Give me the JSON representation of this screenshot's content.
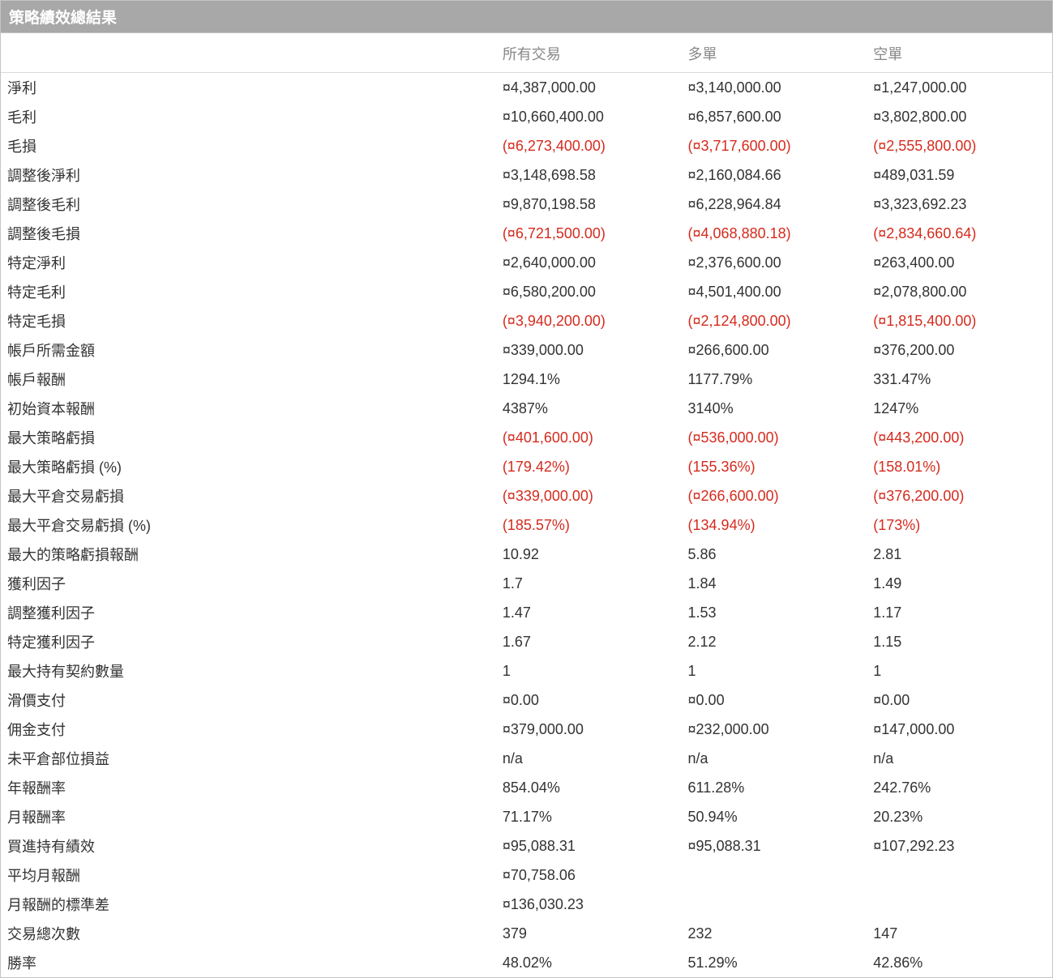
{
  "title": "策略績效總結果",
  "columns": [
    "",
    "所有交易",
    "多單",
    "空單"
  ],
  "rows": [
    {
      "label": "淨利",
      "vals": [
        {
          "t": "¤4,387,000.00",
          "neg": false
        },
        {
          "t": "¤3,140,000.00",
          "neg": false
        },
        {
          "t": "¤1,247,000.00",
          "neg": false
        }
      ]
    },
    {
      "label": "毛利",
      "vals": [
        {
          "t": "¤10,660,400.00",
          "neg": false
        },
        {
          "t": "¤6,857,600.00",
          "neg": false
        },
        {
          "t": "¤3,802,800.00",
          "neg": false
        }
      ]
    },
    {
      "label": "毛損",
      "vals": [
        {
          "t": "(¤6,273,400.00)",
          "neg": true
        },
        {
          "t": "(¤3,717,600.00)",
          "neg": true
        },
        {
          "t": "(¤2,555,800.00)",
          "neg": true
        }
      ]
    },
    {
      "label": "調整後淨利",
      "vals": [
        {
          "t": "¤3,148,698.58",
          "neg": false
        },
        {
          "t": "¤2,160,084.66",
          "neg": false
        },
        {
          "t": "¤489,031.59",
          "neg": false
        }
      ]
    },
    {
      "label": "調整後毛利",
      "vals": [
        {
          "t": "¤9,870,198.58",
          "neg": false
        },
        {
          "t": "¤6,228,964.84",
          "neg": false
        },
        {
          "t": "¤3,323,692.23",
          "neg": false
        }
      ]
    },
    {
      "label": "調整後毛損",
      "vals": [
        {
          "t": "(¤6,721,500.00)",
          "neg": true
        },
        {
          "t": "(¤4,068,880.18)",
          "neg": true
        },
        {
          "t": "(¤2,834,660.64)",
          "neg": true
        }
      ]
    },
    {
      "label": "特定淨利",
      "vals": [
        {
          "t": "¤2,640,000.00",
          "neg": false
        },
        {
          "t": "¤2,376,600.00",
          "neg": false
        },
        {
          "t": "¤263,400.00",
          "neg": false
        }
      ]
    },
    {
      "label": "特定毛利",
      "vals": [
        {
          "t": "¤6,580,200.00",
          "neg": false
        },
        {
          "t": "¤4,501,400.00",
          "neg": false
        },
        {
          "t": "¤2,078,800.00",
          "neg": false
        }
      ]
    },
    {
      "label": "特定毛損",
      "vals": [
        {
          "t": "(¤3,940,200.00)",
          "neg": true
        },
        {
          "t": "(¤2,124,800.00)",
          "neg": true
        },
        {
          "t": "(¤1,815,400.00)",
          "neg": true
        }
      ]
    },
    {
      "label": "帳戶所需金額",
      "vals": [
        {
          "t": "¤339,000.00",
          "neg": false
        },
        {
          "t": "¤266,600.00",
          "neg": false
        },
        {
          "t": "¤376,200.00",
          "neg": false
        }
      ]
    },
    {
      "label": "帳戶報酬",
      "vals": [
        {
          "t": "1294.1%",
          "neg": false
        },
        {
          "t": "1177.79%",
          "neg": false
        },
        {
          "t": "331.47%",
          "neg": false
        }
      ]
    },
    {
      "label": "初始資本報酬",
      "vals": [
        {
          "t": "4387%",
          "neg": false
        },
        {
          "t": "3140%",
          "neg": false
        },
        {
          "t": "1247%",
          "neg": false
        }
      ]
    },
    {
      "label": "最大策略虧損",
      "vals": [
        {
          "t": "(¤401,600.00)",
          "neg": true
        },
        {
          "t": "(¤536,000.00)",
          "neg": true
        },
        {
          "t": "(¤443,200.00)",
          "neg": true
        }
      ]
    },
    {
      "label": "最大策略虧損 (%)",
      "vals": [
        {
          "t": "(179.42%)",
          "neg": true
        },
        {
          "t": "(155.36%)",
          "neg": true
        },
        {
          "t": "(158.01%)",
          "neg": true
        }
      ]
    },
    {
      "label": "最大平倉交易虧損",
      "vals": [
        {
          "t": "(¤339,000.00)",
          "neg": true
        },
        {
          "t": "(¤266,600.00)",
          "neg": true
        },
        {
          "t": "(¤376,200.00)",
          "neg": true
        }
      ]
    },
    {
      "label": "最大平倉交易虧損 (%)",
      "vals": [
        {
          "t": "(185.57%)",
          "neg": true
        },
        {
          "t": "(134.94%)",
          "neg": true
        },
        {
          "t": "(173%)",
          "neg": true
        }
      ]
    },
    {
      "label": "最大的策略虧損報酬",
      "vals": [
        {
          "t": "10.92",
          "neg": false
        },
        {
          "t": "5.86",
          "neg": false
        },
        {
          "t": "2.81",
          "neg": false
        }
      ]
    },
    {
      "label": "獲利因子",
      "vals": [
        {
          "t": "1.7",
          "neg": false
        },
        {
          "t": "1.84",
          "neg": false
        },
        {
          "t": "1.49",
          "neg": false
        }
      ]
    },
    {
      "label": "調整獲利因子",
      "vals": [
        {
          "t": "1.47",
          "neg": false
        },
        {
          "t": "1.53",
          "neg": false
        },
        {
          "t": "1.17",
          "neg": false
        }
      ]
    },
    {
      "label": "特定獲利因子",
      "vals": [
        {
          "t": "1.67",
          "neg": false
        },
        {
          "t": "2.12",
          "neg": false
        },
        {
          "t": "1.15",
          "neg": false
        }
      ]
    },
    {
      "label": "最大持有契約數量",
      "vals": [
        {
          "t": "1",
          "neg": false
        },
        {
          "t": "1",
          "neg": false
        },
        {
          "t": "1",
          "neg": false
        }
      ]
    },
    {
      "label": "滑價支付",
      "vals": [
        {
          "t": "¤0.00",
          "neg": false
        },
        {
          "t": "¤0.00",
          "neg": false
        },
        {
          "t": "¤0.00",
          "neg": false
        }
      ]
    },
    {
      "label": "佣金支付",
      "vals": [
        {
          "t": "¤379,000.00",
          "neg": false
        },
        {
          "t": "¤232,000.00",
          "neg": false
        },
        {
          "t": "¤147,000.00",
          "neg": false
        }
      ]
    },
    {
      "label": "未平倉部位損益",
      "vals": [
        {
          "t": "n/a",
          "neg": false
        },
        {
          "t": "n/a",
          "neg": false
        },
        {
          "t": "n/a",
          "neg": false
        }
      ]
    },
    {
      "label": "年報酬率",
      "vals": [
        {
          "t": "854.04%",
          "neg": false
        },
        {
          "t": "611.28%",
          "neg": false
        },
        {
          "t": "242.76%",
          "neg": false
        }
      ]
    },
    {
      "label": "月報酬率",
      "vals": [
        {
          "t": "71.17%",
          "neg": false
        },
        {
          "t": "50.94%",
          "neg": false
        },
        {
          "t": "20.23%",
          "neg": false
        }
      ]
    },
    {
      "label": "買進持有績效",
      "vals": [
        {
          "t": "¤95,088.31",
          "neg": false
        },
        {
          "t": "¤95,088.31",
          "neg": false
        },
        {
          "t": "¤107,292.23",
          "neg": false
        }
      ]
    },
    {
      "label": "平均月報酬",
      "vals": [
        {
          "t": "¤70,758.06",
          "neg": false
        },
        {
          "t": "",
          "neg": false
        },
        {
          "t": "",
          "neg": false
        }
      ]
    },
    {
      "label": "月報酬的標準差",
      "vals": [
        {
          "t": "¤136,030.23",
          "neg": false
        },
        {
          "t": "",
          "neg": false
        },
        {
          "t": "",
          "neg": false
        }
      ]
    },
    {
      "label": "交易總次數",
      "vals": [
        {
          "t": "379",
          "neg": false
        },
        {
          "t": "232",
          "neg": false
        },
        {
          "t": "147",
          "neg": false
        }
      ]
    },
    {
      "label": "勝率",
      "vals": [
        {
          "t": "48.02%",
          "neg": false
        },
        {
          "t": "51.29%",
          "neg": false
        },
        {
          "t": "42.86%",
          "neg": false
        }
      ]
    }
  ]
}
